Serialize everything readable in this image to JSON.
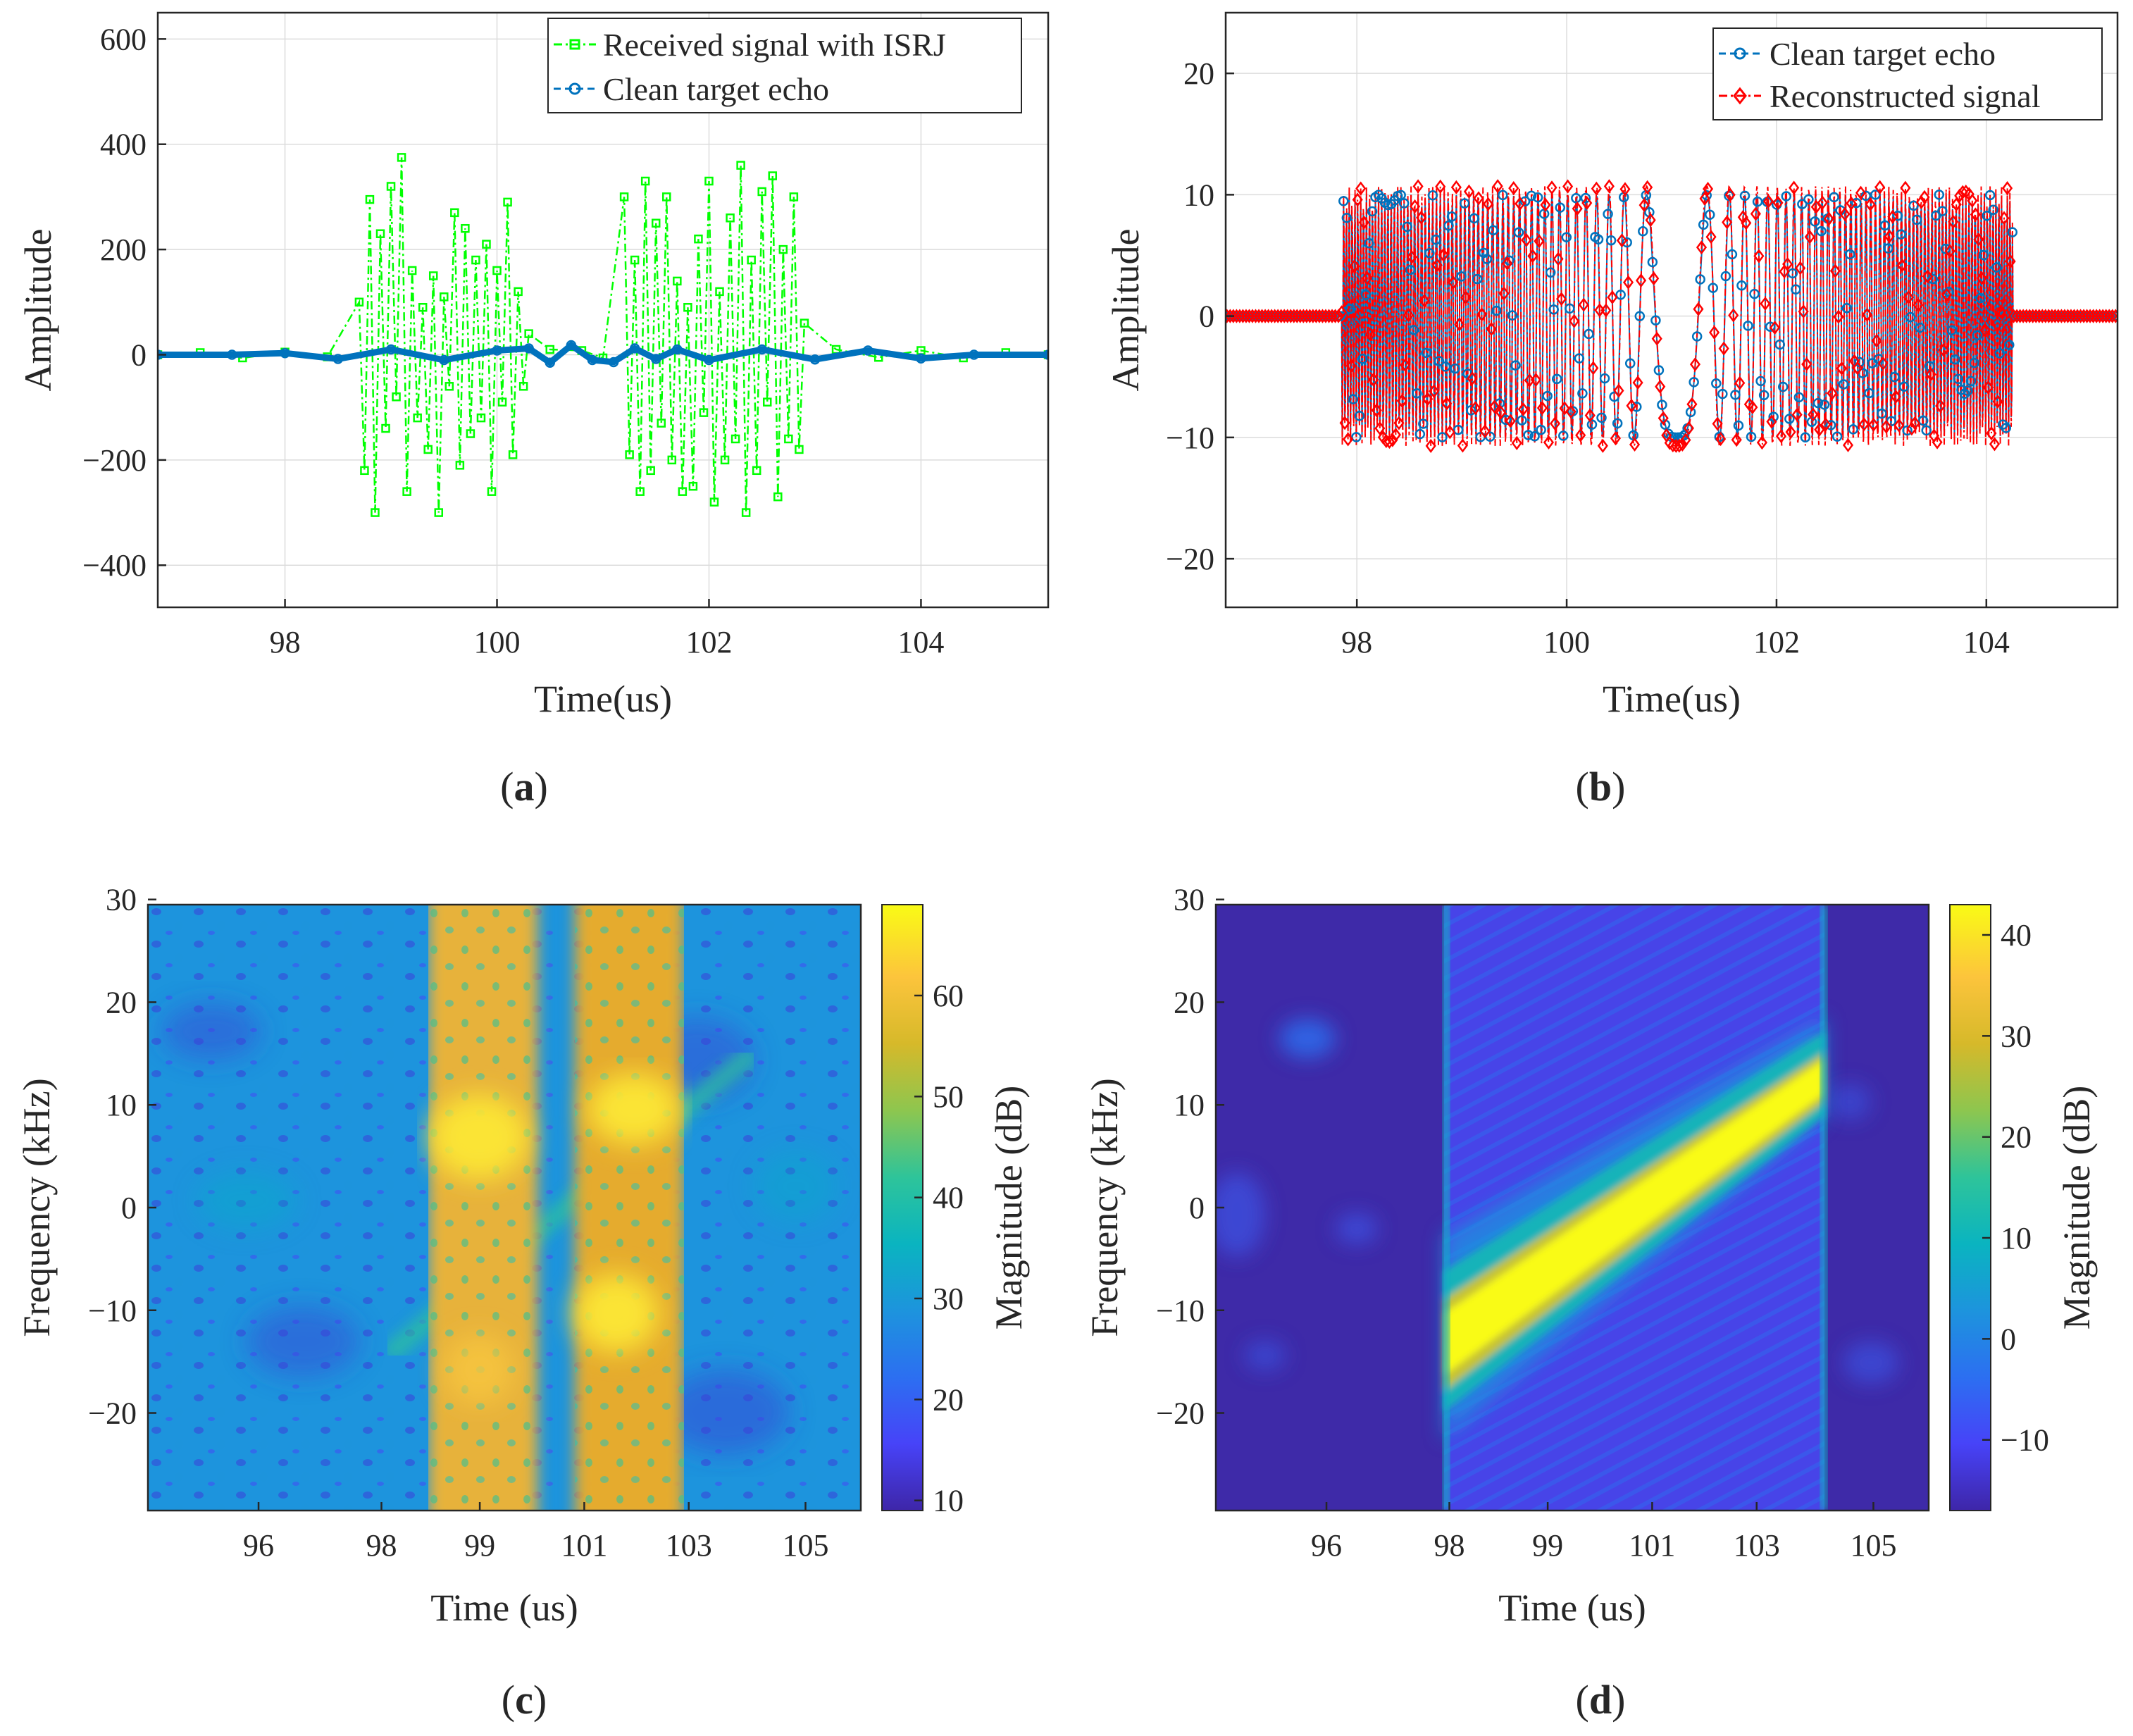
{
  "figure": {
    "panels": [
      {
        "caption_letter": "a"
      },
      {
        "caption_letter": "b"
      },
      {
        "caption_letter": "c"
      },
      {
        "caption_letter": "d"
      }
    ]
  },
  "colors": {
    "green": "#00ff00",
    "blue": "#0072bd",
    "red": "#ff0000",
    "grid": "#dcdcdc",
    "axis": "#262626",
    "parula": [
      "#3e26a8",
      "#4743f8",
      "#2c6ff1",
      "#1d94dd",
      "#0ab4c0",
      "#2ec49a",
      "#8dc64f",
      "#d6b92a",
      "#fcc43c",
      "#f9fb15"
    ]
  },
  "chart_data": [
    {
      "id": "a",
      "type": "line",
      "title": "",
      "xlabel": "Time(us)",
      "ylabel": "Amplitude",
      "xlim": [
        96.8,
        105.2
      ],
      "ylim": [
        -480,
        650
      ],
      "xticks": [
        98,
        100,
        102,
        104
      ],
      "yticks": [
        -400,
        -200,
        0,
        200,
        400,
        600
      ],
      "grid": true,
      "legend_position": "top-right",
      "series": [
        {
          "name": "Received signal with ISRJ",
          "color": "#00ff00",
          "marker": "square",
          "line": "dash-dot",
          "description": "Interrupted sampling repeater jamming bursts of about +/-300 on 98.7-100.3 us and 101.2-102.9 us; near zero elsewhere",
          "x": [
            96.8,
            97.2,
            97.6,
            98.0,
            98.4,
            98.7,
            98.75,
            98.8,
            98.85,
            98.9,
            98.95,
            99.0,
            99.05,
            99.1,
            99.15,
            99.2,
            99.25,
            99.3,
            99.35,
            99.4,
            99.45,
            99.5,
            99.55,
            99.6,
            99.65,
            99.7,
            99.75,
            99.8,
            99.85,
            99.9,
            99.95,
            100.0,
            100.05,
            100.1,
            100.15,
            100.2,
            100.25,
            100.3,
            100.5,
            100.8,
            101.0,
            101.2,
            101.25,
            101.3,
            101.35,
            101.4,
            101.45,
            101.5,
            101.55,
            101.6,
            101.65,
            101.7,
            101.75,
            101.8,
            101.85,
            101.9,
            101.95,
            102.0,
            102.05,
            102.1,
            102.15,
            102.2,
            102.25,
            102.3,
            102.35,
            102.4,
            102.45,
            102.5,
            102.55,
            102.6,
            102.65,
            102.7,
            102.75,
            102.8,
            102.85,
            102.9,
            103.2,
            103.6,
            104.0,
            104.4,
            104.8,
            105.2
          ],
          "y": [
            0,
            4,
            -6,
            5,
            -4,
            100,
            -220,
            295,
            -300,
            230,
            -140,
            320,
            -80,
            375,
            -260,
            160,
            -120,
            90,
            -180,
            150,
            -300,
            110,
            -60,
            270,
            -210,
            240,
            -150,
            180,
            -120,
            210,
            -260,
            160,
            -90,
            290,
            -190,
            120,
            -60,
            40,
            10,
            8,
            -6,
            300,
            -190,
            180,
            -260,
            330,
            -220,
            250,
            -130,
            300,
            -200,
            140,
            -260,
            90,
            -250,
            220,
            -110,
            330,
            -280,
            120,
            -200,
            260,
            -160,
            360,
            -300,
            180,
            -220,
            310,
            -90,
            340,
            -270,
            200,
            -160,
            300,
            -180,
            60,
            10,
            -5,
            8,
            -6,
            4,
            0
          ]
        },
        {
          "name": "Clean target echo",
          "color": "#0072bd",
          "marker": "circle",
          "line": "dash",
          "description": "Clean chirp echo of amplitude about +/-10, visually flat near zero",
          "x": [
            96.8,
            97.5,
            98.0,
            98.5,
            99.0,
            99.5,
            100.0,
            100.3,
            100.5,
            100.7,
            100.9,
            101.1,
            101.3,
            101.5,
            101.7,
            102.0,
            102.5,
            103.0,
            103.5,
            104.0,
            104.5,
            105.2
          ],
          "y": [
            0,
            0,
            3,
            -8,
            10,
            -10,
            8,
            12,
            -15,
            18,
            -10,
            -14,
            12,
            -8,
            10,
            -10,
            10,
            -9,
            8,
            -7,
            0,
            0
          ]
        }
      ]
    },
    {
      "id": "b",
      "type": "line",
      "title": "",
      "xlabel": "Time(us)",
      "ylabel": "Amplitude",
      "xlim": [
        96.75,
        105.25
      ],
      "ylim": [
        -24,
        25
      ],
      "xticks": [
        98,
        100,
        102,
        104
      ],
      "yticks": [
        -20,
        -10,
        0,
        10,
        20
      ],
      "grid": true,
      "legend_position": "top-right",
      "signal_model": {
        "pulse_start": 97.85,
        "pulse_end": 104.25,
        "center": 101.05,
        "amplitude": 10,
        "chirp_rate": 12
      },
      "series": [
        {
          "name": "Clean target echo",
          "color": "#0072bd",
          "marker": "circle",
          "line": "dash",
          "amplitude": 10,
          "description": "LFM chirp of amplitude 10 between 97.85 and 104.25 us, slowest oscillation at 101.05 us"
        },
        {
          "name": "Reconstructed signal",
          "color": "#ff0000",
          "marker": "diamond",
          "line": "dash-dot",
          "amplitude": 10.7,
          "description": "Reconstructed chirp overlapping the clean echo with slightly larger amplitude"
        }
      ]
    },
    {
      "id": "c",
      "type": "heatmap",
      "title": "",
      "xlabel": "Time (us)",
      "ylabel": "Frequency (kHz)",
      "xlim": [
        94.2,
        105.8
      ],
      "ylim": [
        -29.5,
        29.5
      ],
      "x_tick_labels": [
        "96",
        "98",
        "99",
        "101",
        "103",
        "105"
      ],
      "x_tick_positions": [
        96,
        98,
        99.6,
        101.3,
        103,
        104.9
      ],
      "yticks": [
        -20,
        -10,
        0,
        10,
        20,
        30
      ],
      "colorbar_label": "Magnitude (dB)",
      "clim": [
        9,
        69
      ],
      "colorbar_ticks": [
        10,
        20,
        30,
        40,
        50,
        60
      ],
      "regions": {
        "background_db": 22,
        "jamming_bursts": [
          {
            "t_start": 98.7,
            "t_end": 100.2,
            "level_db": 54,
            "hot_spots_khz": [
              7,
              -20
            ]
          },
          {
            "t_start": 101.0,
            "t_end": 102.5,
            "level_db": 55,
            "hot_spots_khz": [
              11,
              -12
            ]
          }
        ],
        "echo_chirp": {
          "t_start": 98.0,
          "t_end": 103.7,
          "f_start": -14,
          "f_end": 14,
          "level_db": 36
        }
      }
    },
    {
      "id": "d",
      "type": "heatmap",
      "title": "",
      "xlabel": "Time (us)",
      "ylabel": "Frequency (kHz)",
      "xlim": [
        94.2,
        105.8
      ],
      "ylim": [
        -29.5,
        29.5
      ],
      "x_tick_labels": [
        "96",
        "98",
        "99",
        "101",
        "103",
        "105"
      ],
      "x_tick_positions": [
        96,
        98,
        99.6,
        101.3,
        103,
        104.9
      ],
      "yticks": [
        -20,
        -10,
        0,
        10,
        20,
        30
      ],
      "colorbar_label": "Magnitude (dB)",
      "clim": [
        -17,
        43
      ],
      "colorbar_ticks": [
        -10,
        0,
        10,
        20,
        30,
        40
      ],
      "regions": {
        "background_db": -12,
        "pulse_edges_us": [
          97.9,
          104.1
        ],
        "chirp": {
          "t_start": 97.9,
          "t_end": 104.1,
          "f_start": -14,
          "f_end": 14,
          "level_db": 42
        }
      }
    }
  ]
}
